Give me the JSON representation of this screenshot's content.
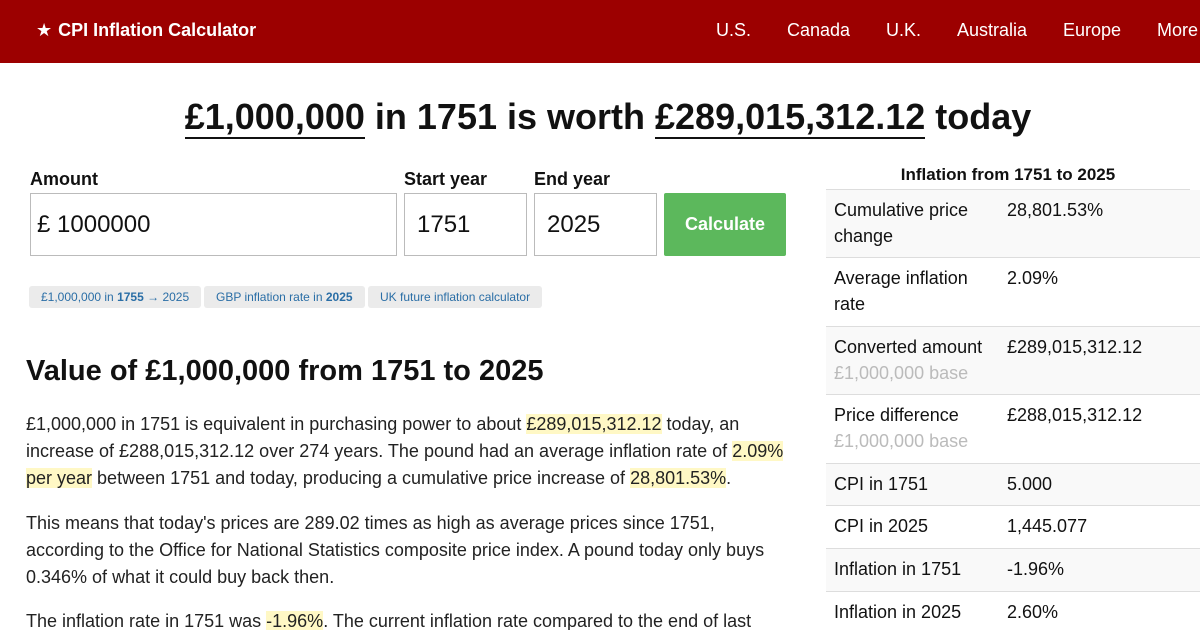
{
  "header": {
    "brand_star": "★",
    "brand": "CPI Inflation Calculator",
    "nav": [
      "U.S.",
      "Canada",
      "U.K.",
      "Australia",
      "Europe",
      "More"
    ]
  },
  "headline": {
    "amount": "£1,000,000",
    "mid1": " in 1751 is worth ",
    "value": "£289,015,312.12",
    "end": " today"
  },
  "form": {
    "amount_label": "Amount",
    "currency_symbol": "£",
    "amount_value": "1000000",
    "start_label": "Start year",
    "start_value": "1751",
    "end_label": "End year",
    "end_value": "2025",
    "button": "Calculate"
  },
  "chips": [
    {
      "pre": "£1,000,000 in ",
      "bold": "1755",
      "post": " → 2025"
    },
    {
      "pre": "GBP inflation rate in ",
      "bold": "2025",
      "post": ""
    },
    {
      "pre": "UK future inflation calculator",
      "bold": "",
      "post": ""
    }
  ],
  "article": {
    "heading": "Value of £1,000,000 from 1751 to 2025",
    "p1": {
      "a": "£1,000,000 in 1751 is equivalent in purchasing power to about ",
      "h1": "£289,015,312.12",
      "b": " today, an increase of £288,015,312.12 over 274 years. The pound had an average inflation rate of ",
      "h2": "2.09% per year",
      "c": " between 1751 and today, producing a cumulative price increase of ",
      "h3": "28,801.53%",
      "d": "."
    },
    "p2": "This means that today's prices are 289.02 times as high as average prices since 1751, according to the Office for National Statistics composite price index. A pound today only buys 0.346% of what it could buy back then.",
    "p3": {
      "a": "The inflation rate in 1751 was ",
      "h1": "-1.96%",
      "b": ". The current inflation rate compared to the end of last"
    }
  },
  "table": {
    "title": "Inflation from 1751 to 2025",
    "rows": [
      {
        "label": "Cumulative price change",
        "sub": "",
        "value": "28,801.53%"
      },
      {
        "label": "Average inflation rate",
        "sub": "",
        "value": "2.09%"
      },
      {
        "label": "Converted amount",
        "sub": "£1,000,000 base",
        "value": "£289,015,312.12"
      },
      {
        "label": "Price difference",
        "sub": "£1,000,000 base",
        "value": "£288,015,312.12"
      },
      {
        "label": "CPI in 1751",
        "sub": "",
        "value": "5.000"
      },
      {
        "label": "CPI in 2025",
        "sub": "",
        "value": "1,445.077"
      },
      {
        "label": "Inflation in 1751",
        "sub": "",
        "value": "-1.96%"
      },
      {
        "label": "Inflation in 2025",
        "sub": "",
        "value": "2.60%"
      }
    ]
  }
}
